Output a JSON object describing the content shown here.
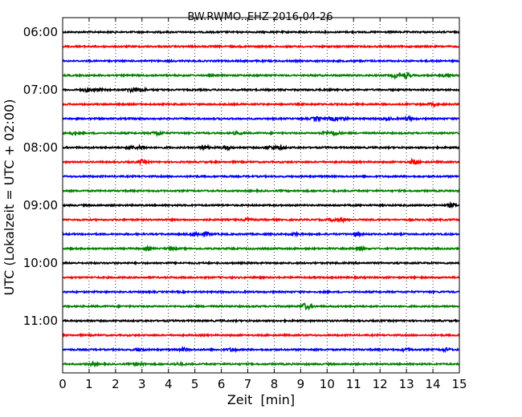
{
  "chart_data": {
    "type": "line",
    "title": "BW.RWMO..EHZ 2016-04-26",
    "xlabel": "Zeit  [min]",
    "ylabel": "UTC (Lokalzeit = UTC + 02:00)",
    "xlim": [
      0,
      15
    ],
    "x_ticks": [
      0,
      1,
      2,
      3,
      4,
      5,
      6,
      7,
      8,
      9,
      10,
      11,
      12,
      13,
      14,
      15
    ],
    "x_tick_labels": [
      "0",
      "1",
      "2",
      "3",
      "4",
      "5",
      "6",
      "7",
      "8",
      "9",
      "10",
      "11",
      "12",
      "13",
      "14",
      "15"
    ],
    "y_tick_labels": [
      "06:00",
      "07:00",
      "08:00",
      "09:00",
      "10:00",
      "11:00"
    ],
    "trace_minutes": 15,
    "traces_per_hour": 4,
    "grid": true,
    "colors": [
      "#000000",
      "#ff0000",
      "#0000ff",
      "#008000"
    ],
    "series": [
      {
        "start": "06:00",
        "color": "#000000",
        "bursts": []
      },
      {
        "start": "06:15",
        "color": "#ff0000",
        "bursts": []
      },
      {
        "start": "06:30",
        "color": "#0000ff",
        "bursts": []
      },
      {
        "start": "06:45",
        "color": "#008000",
        "bursts": [
          {
            "t": 12.6,
            "a": 2.0
          },
          {
            "t": 13.0,
            "a": 2.5
          },
          {
            "t": 14.5,
            "a": 1.5
          }
        ]
      },
      {
        "start": "07:00",
        "color": "#000000",
        "bursts": [
          {
            "t": 0.9,
            "a": 1.5
          },
          {
            "t": 1.3,
            "a": 1.5
          },
          {
            "t": 2.6,
            "a": 2.0
          },
          {
            "t": 3.0,
            "a": 1.5
          }
        ]
      },
      {
        "start": "07:15",
        "color": "#ff0000",
        "bursts": [
          {
            "t": 14.0,
            "a": 1.2
          }
        ]
      },
      {
        "start": "07:30",
        "color": "#0000ff",
        "bursts": [
          {
            "t": 9.6,
            "a": 2.0
          },
          {
            "t": 10.2,
            "a": 2.0
          },
          {
            "t": 10.6,
            "a": 1.5
          },
          {
            "t": 12.3,
            "a": 1.2
          },
          {
            "t": 13.1,
            "a": 1.5
          }
        ]
      },
      {
        "start": "07:45",
        "color": "#008000",
        "bursts": [
          {
            "t": 0.3,
            "a": 1.5
          },
          {
            "t": 3.6,
            "a": 2.5
          },
          {
            "t": 6.6,
            "a": 1.5
          },
          {
            "t": 9.9,
            "a": 1.5
          },
          {
            "t": 10.3,
            "a": 1.8
          }
        ]
      },
      {
        "start": "08:00",
        "color": "#000000",
        "bursts": [
          {
            "t": 2.6,
            "a": 1.5
          },
          {
            "t": 3.0,
            "a": 1.5
          },
          {
            "t": 5.4,
            "a": 1.5
          },
          {
            "t": 6.2,
            "a": 2.0
          },
          {
            "t": 7.8,
            "a": 1.5
          },
          {
            "t": 8.2,
            "a": 1.8
          }
        ]
      },
      {
        "start": "08:15",
        "color": "#ff0000",
        "bursts": [
          {
            "t": 3.0,
            "a": 2.0
          },
          {
            "t": 13.3,
            "a": 2.5
          }
        ]
      },
      {
        "start": "08:30",
        "color": "#0000ff",
        "bursts": []
      },
      {
        "start": "08:45",
        "color": "#008000",
        "bursts": []
      },
      {
        "start": "09:00",
        "color": "#000000",
        "bursts": [
          {
            "t": 14.7,
            "a": 2.0
          }
        ]
      },
      {
        "start": "09:15",
        "color": "#ff0000",
        "bursts": [
          {
            "t": 7.0,
            "a": 1.5
          },
          {
            "t": 10.2,
            "a": 1.5
          },
          {
            "t": 10.6,
            "a": 1.2
          }
        ]
      },
      {
        "start": "09:30",
        "color": "#0000ff",
        "bursts": [
          {
            "t": 5.0,
            "a": 2.5
          },
          {
            "t": 5.4,
            "a": 2.0
          },
          {
            "t": 8.8,
            "a": 1.2
          },
          {
            "t": 11.1,
            "a": 1.5
          }
        ]
      },
      {
        "start": "09:45",
        "color": "#008000",
        "bursts": [
          {
            "t": 3.2,
            "a": 1.5
          },
          {
            "t": 4.1,
            "a": 1.2
          },
          {
            "t": 11.2,
            "a": 2.0
          }
        ]
      },
      {
        "start": "10:00",
        "color": "#000000",
        "bursts": []
      },
      {
        "start": "10:15",
        "color": "#ff0000",
        "bursts": []
      },
      {
        "start": "10:30",
        "color": "#0000ff",
        "bursts": []
      },
      {
        "start": "10:45",
        "color": "#008000",
        "bursts": [
          {
            "t": 9.2,
            "a": 3.5
          }
        ]
      },
      {
        "start": "11:00",
        "color": "#000000",
        "bursts": []
      },
      {
        "start": "11:15",
        "color": "#ff0000",
        "bursts": []
      },
      {
        "start": "11:30",
        "color": "#0000ff",
        "bursts": [
          {
            "t": 2.9,
            "a": 1.5
          },
          {
            "t": 4.6,
            "a": 1.5
          },
          {
            "t": 6.4,
            "a": 1.5
          },
          {
            "t": 13.0,
            "a": 1.5
          },
          {
            "t": 14.5,
            "a": 1.5
          }
        ]
      },
      {
        "start": "11:45",
        "color": "#008000",
        "bursts": [
          {
            "t": 1.1,
            "a": 1.2
          },
          {
            "t": 2.9,
            "a": 1.8
          },
          {
            "t": 4.4,
            "a": 1.2
          }
        ]
      }
    ]
  }
}
